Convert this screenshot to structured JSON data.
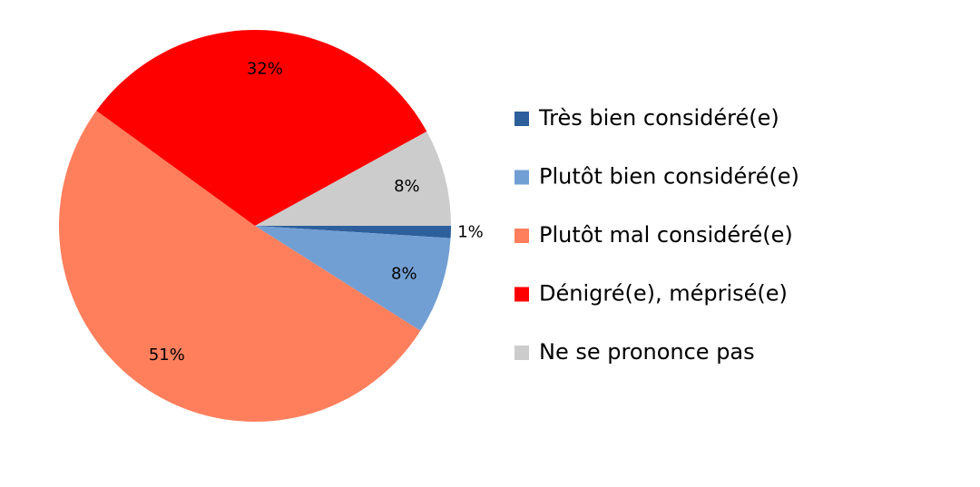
{
  "chart_data": {
    "type": "pie",
    "categories": [
      "Très bien considéré(e)",
      "Plutôt bien considéré(e)",
      "Plutôt mal considéré(e)",
      "Dénigré(e), méprisé(e)",
      "Ne se prononce pas"
    ],
    "values": [
      1,
      8,
      51,
      32,
      8
    ],
    "value_labels": [
      "1%",
      "8%",
      "51%",
      "32%",
      "8%"
    ],
    "colors": [
      "#2d5f9c",
      "#729fd3",
      "#ff7f5d",
      "#ff0000",
      "#cccccc"
    ],
    "legend": "right"
  }
}
